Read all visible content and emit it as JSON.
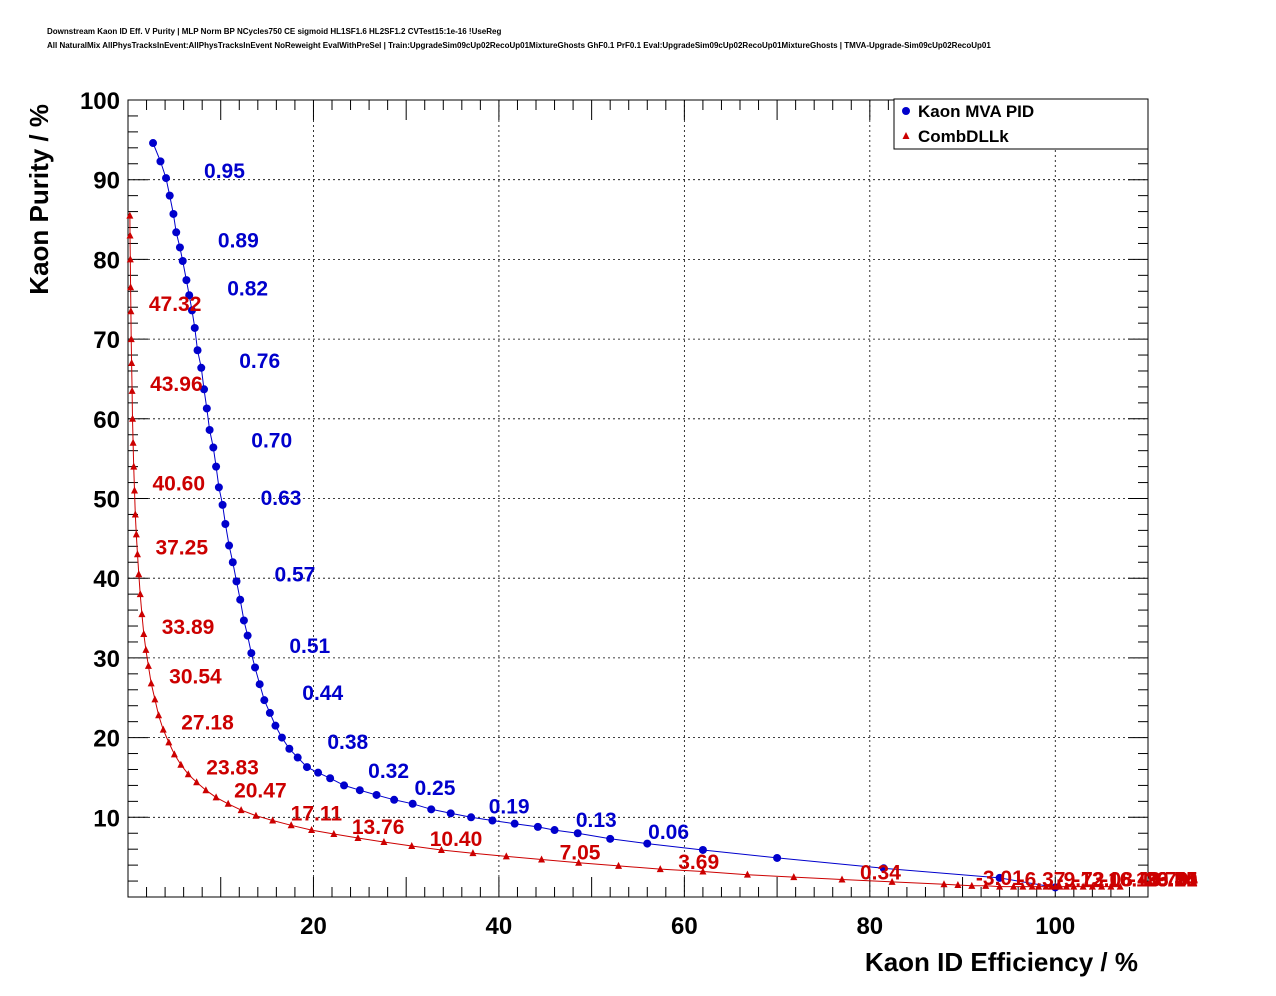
{
  "header": {
    "title_line1": "Downstream Kaon ID Eff. V Purity | MLP Norm BP NCycles750 CE sigmoid HL1SF1.6 HL2SF1.2 CVTest15:1e-16 !UseReg",
    "title_line2": "All NaturalMix AllPhysTracksInEvent:AllPhysTracksInEvent NoReweight EvalWithPreSel | Train:UpgradeSim09cUp02RecoUp01MixtureGhosts GhF0.1 PrF0.1 Eval:UpgradeSim09cUp02RecoUp01MixtureGhosts | TMVA-Upgrade-Sim09cUp02RecoUp01"
  },
  "chart_data": {
    "type": "scatter",
    "xlabel": "Kaon ID Efficiency / %",
    "ylabel": "Kaon Purity / %",
    "xlim": [
      0,
      110
    ],
    "ylim": [
      0,
      100
    ],
    "xticks": [
      20,
      40,
      60,
      80,
      100
    ],
    "yticks": [
      10,
      20,
      30,
      40,
      50,
      60,
      70,
      80,
      90,
      100
    ],
    "grid": true,
    "legend_position": "top-right",
    "series": [
      {
        "name": "Kaon MVA PID",
        "color": "#0000cc",
        "marker": "circle",
        "x": [
          2.7,
          3.5,
          4.1,
          4.5,
          4.9,
          5.2,
          5.6,
          5.9,
          6.3,
          6.6,
          6.9,
          7.2,
          7.5,
          7.9,
          8.2,
          8.5,
          8.8,
          9.2,
          9.5,
          9.8,
          10.2,
          10.5,
          10.9,
          11.3,
          11.7,
          12.1,
          12.5,
          12.9,
          13.3,
          13.7,
          14.2,
          14.7,
          15.3,
          15.9,
          16.6,
          17.4,
          18.3,
          19.3,
          20.5,
          21.8,
          23.3,
          25.0,
          26.8,
          28.7,
          30.7,
          32.7,
          34.8,
          37.0,
          39.3,
          41.7,
          44.2,
          46.0,
          48.5,
          52.0,
          56.0,
          62.0,
          70.0,
          81.5,
          94.0,
          100.0
        ],
        "y": [
          94.6,
          92.3,
          90.2,
          88.0,
          85.7,
          83.4,
          81.5,
          79.8,
          77.4,
          75.5,
          73.6,
          71.4,
          68.6,
          66.4,
          63.7,
          61.3,
          58.6,
          56.4,
          54.0,
          51.4,
          49.2,
          46.8,
          44.1,
          42.0,
          39.6,
          37.3,
          34.7,
          32.8,
          30.6,
          28.8,
          26.7,
          24.7,
          23.1,
          21.5,
          20.0,
          18.6,
          17.5,
          16.3,
          15.6,
          14.9,
          14.0,
          13.4,
          12.8,
          12.2,
          11.7,
          11.0,
          10.5,
          10.0,
          9.6,
          9.2,
          8.8,
          8.4,
          8.0,
          7.3,
          6.7,
          5.9,
          4.9,
          3.6,
          2.4,
          1.2
        ],
        "labels": [
          "0.95",
          "0.89",
          "0.82",
          "0.76",
          "0.70",
          "0.63",
          "0.57",
          "0.51",
          "0.44",
          "0.38",
          "0.32",
          "0.25",
          "0.19",
          "0.13",
          "0.06"
        ]
      },
      {
        "name": "CombDLLk",
        "color": "#cc0000",
        "marker": "triangle",
        "x": [
          0.2,
          0.22,
          0.25,
          0.28,
          0.31,
          0.35,
          0.39,
          0.44,
          0.49,
          0.55,
          0.62,
          0.7,
          0.79,
          0.9,
          1.02,
          1.16,
          1.32,
          1.5,
          1.7,
          1.93,
          2.2,
          2.5,
          2.9,
          3.3,
          3.8,
          4.4,
          5.0,
          5.7,
          6.5,
          7.4,
          8.4,
          9.5,
          10.8,
          12.2,
          13.8,
          15.6,
          17.6,
          19.8,
          22.2,
          24.8,
          27.6,
          30.6,
          33.8,
          37.2,
          40.8,
          44.6,
          48.6,
          52.9,
          57.4,
          62.0,
          66.8,
          71.8,
          77.0,
          82.4,
          88.0,
          89.5,
          91.0,
          92.5,
          94.0,
          95.5,
          96.5,
          97.5,
          98.2,
          99.0,
          99.6,
          100.0,
          100.5,
          101.2,
          102.0,
          103.0,
          104.0,
          105.0,
          106.0,
          107.0
        ],
        "y": [
          85.5,
          83.0,
          80.0,
          76.5,
          73.5,
          70.0,
          67.0,
          63.5,
          60.0,
          57.0,
          54.0,
          51.0,
          48.0,
          45.5,
          43.0,
          40.5,
          38.0,
          35.5,
          33.0,
          31.0,
          29.0,
          26.8,
          24.8,
          22.8,
          21.0,
          19.4,
          17.9,
          16.6,
          15.4,
          14.4,
          13.4,
          12.5,
          11.7,
          10.9,
          10.2,
          9.6,
          9.0,
          8.4,
          7.9,
          7.4,
          6.9,
          6.4,
          5.9,
          5.5,
          5.1,
          4.7,
          4.3,
          3.9,
          3.5,
          3.2,
          2.8,
          2.5,
          2.2,
          1.9,
          1.6,
          1.5,
          1.4,
          1.4,
          1.3,
          1.3,
          1.3,
          1.3,
          1.3,
          1.3,
          1.3,
          1.3,
          1.3,
          1.3,
          1.3,
          1.3,
          1.3,
          1.3,
          1.3,
          1.3
        ],
        "labels": [
          "47.32",
          "43.96",
          "40.60",
          "37.25",
          "33.89",
          "30.54",
          "27.18",
          "23.83",
          "20.47",
          "17.11",
          "13.76",
          "10.40",
          "7.05",
          "3.69",
          "0.34",
          "-3.01",
          "-6.37",
          "-9.72",
          "-13.08",
          "-16.43",
          "-19.79",
          "-23.14",
          "-26.50",
          "-29.85",
          "-33.21"
        ]
      }
    ]
  }
}
